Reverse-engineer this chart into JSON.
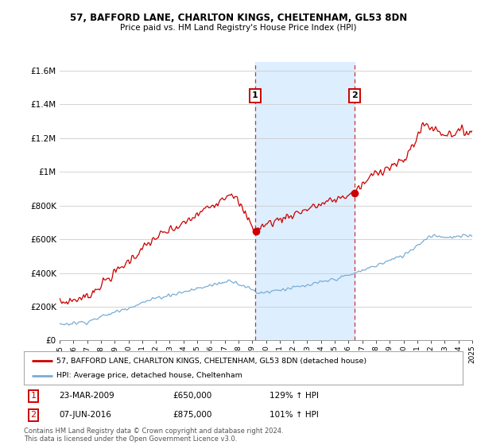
{
  "title1": "57, BAFFORD LANE, CHARLTON KINGS, CHELTENHAM, GL53 8DN",
  "title2": "Price paid vs. HM Land Registry's House Price Index (HPI)",
  "legend1": "57, BAFFORD LANE, CHARLTON KINGS, CHELTENHAM, GL53 8DN (detached house)",
  "legend2": "HPI: Average price, detached house, Cheltenham",
  "marker1_label": "1",
  "marker1_date": "23-MAR-2009",
  "marker1_price": "£650,000",
  "marker1_hpi": "129% ↑ HPI",
  "marker1_year": 2009.22,
  "marker1_value": 650000,
  "marker2_label": "2",
  "marker2_date": "07-JUN-2016",
  "marker2_price": "£875,000",
  "marker2_hpi": "101% ↑ HPI",
  "marker2_year": 2016.44,
  "marker2_value": 875000,
  "footer": "Contains HM Land Registry data © Crown copyright and database right 2024.\nThis data is licensed under the Open Government Licence v3.0.",
  "line_color_red": "#cc0000",
  "line_color_blue": "#7aadd4",
  "shade_color": "#ddeeff",
  "marker_box_color": "#cc0000",
  "ylim": [
    0,
    1650000
  ],
  "yticks": [
    0,
    200000,
    400000,
    600000,
    800000,
    1000000,
    1200000,
    1400000,
    1600000
  ],
  "ytick_labels": [
    "£0",
    "£200K",
    "£400K",
    "£600K",
    "£800K",
    "£1M",
    "£1.2M",
    "£1.4M",
    "£1.6M"
  ],
  "xstart": 1995,
  "xend": 2025
}
